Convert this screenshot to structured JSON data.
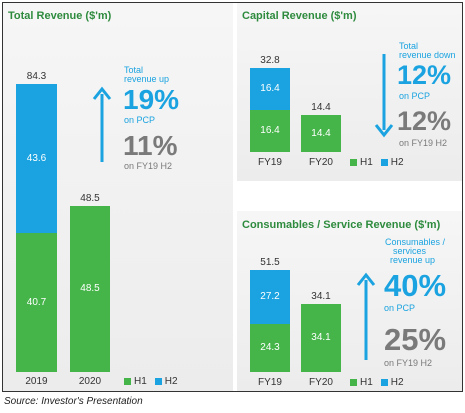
{
  "source": "Source: Investor's Presentation",
  "colors": {
    "h1": "#45b549",
    "h2": "#1aa3e0",
    "title": "#2e8b3e",
    "grey": "#7a7a7a"
  },
  "chart_data": [
    {
      "type": "bar",
      "title": "Total Revenue ($'m)",
      "categories": [
        "2019",
        "2020"
      ],
      "series": [
        {
          "name": "H1",
          "values": [
            40.7,
            48.5
          ]
        },
        {
          "name": "H2",
          "values": [
            43.6,
            null
          ]
        }
      ],
      "totals": [
        "84.3",
        "48.5"
      ],
      "ylim": [
        0,
        84.3
      ],
      "legend": [
        "H1",
        "H2"
      ],
      "annotation": {
        "line1": "Total",
        "line2": "revenue up",
        "pct1": "19%",
        "pct1_label": "on PCP",
        "pct2": "11%",
        "pct2_label": "on FY19 H2"
      }
    },
    {
      "type": "bar",
      "title": "Capital Revenue ($'m)",
      "categories": [
        "FY19",
        "FY20"
      ],
      "series": [
        {
          "name": "H1",
          "values": [
            16.4,
            14.4
          ]
        },
        {
          "name": "H2",
          "values": [
            16.4,
            null
          ]
        }
      ],
      "totals": [
        "32.8",
        "14.4"
      ],
      "ylim": [
        0,
        32.8
      ],
      "legend": [
        "H1",
        "H2"
      ],
      "annotation": {
        "line1": "Total",
        "line2": "revenue down",
        "pct1": "12%",
        "pct1_label": "on PCP",
        "pct2": "12%",
        "pct2_label": "on FY19 H2"
      }
    },
    {
      "type": "bar",
      "title": "Consumables / Service Revenue ($'m)",
      "categories": [
        "FY19",
        "FY20"
      ],
      "series": [
        {
          "name": "H1",
          "values": [
            24.3,
            34.1
          ]
        },
        {
          "name": "H2",
          "values": [
            27.2,
            null
          ]
        }
      ],
      "totals": [
        "51.5",
        "34.1"
      ],
      "ylim": [
        0,
        51.5
      ],
      "legend": [
        "H1",
        "H2"
      ],
      "annotation": {
        "line1": "Consumables /",
        "line2": "services",
        "line3": "revenue up",
        "pct1": "40%",
        "pct1_label": "on PCP",
        "pct2": "25%",
        "pct2_label": "on FY19 H2"
      }
    }
  ]
}
